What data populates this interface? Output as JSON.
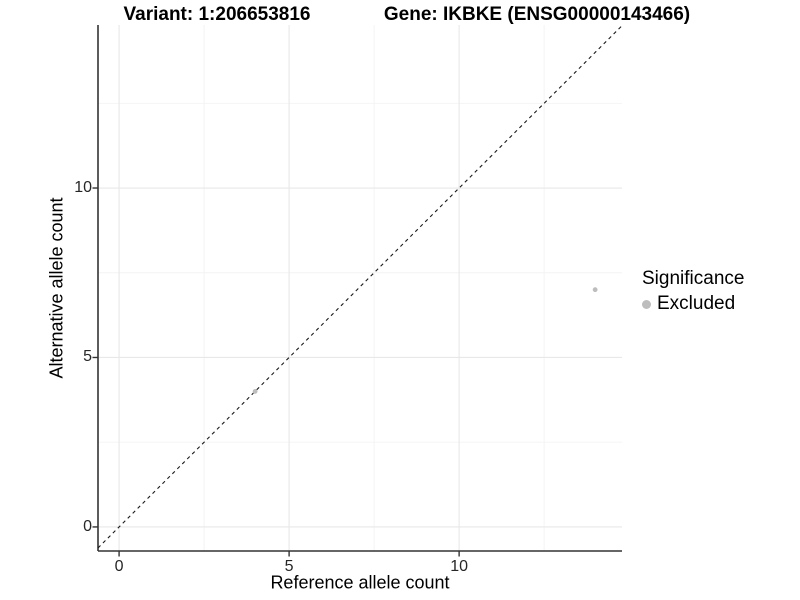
{
  "chart_data": {
    "type": "scatter",
    "titles": {
      "left": "Variant: 1:206653816",
      "right": "Gene: IKBKE (ENSG00000143466)"
    },
    "xlabel": "Reference allele count",
    "ylabel": "Alternative allele count",
    "xlim": [
      -0.62,
      14.79
    ],
    "ylim": [
      -0.71,
      14.81
    ],
    "x_ticks": [
      0,
      5,
      10
    ],
    "y_ticks": [
      0,
      5,
      10
    ],
    "x_minor_gridlines": [
      2.5,
      7.5,
      12.5
    ],
    "y_minor_gridlines": [
      2.5,
      7.5,
      12.5
    ],
    "grid": "on",
    "identity_line": {
      "style": "dashed",
      "equation": "y = x",
      "color": "#1a1a1a"
    },
    "series": [
      {
        "name": "Excluded",
        "color": "#bdbdbd",
        "points": [
          {
            "x": 4,
            "y": 4
          },
          {
            "x": 14,
            "y": 7
          }
        ]
      }
    ],
    "legend": {
      "title": "Significance",
      "position": "right",
      "entries": [
        {
          "label": "Excluded",
          "color": "#bdbdbd"
        }
      ]
    },
    "colors": {
      "major_grid": "#e8e8e8",
      "minor_grid": "#f3f3f3",
      "axis_line": "#333333",
      "tick_mark": "#333333",
      "tick_text": "#262626",
      "title_text": "#000000"
    }
  }
}
